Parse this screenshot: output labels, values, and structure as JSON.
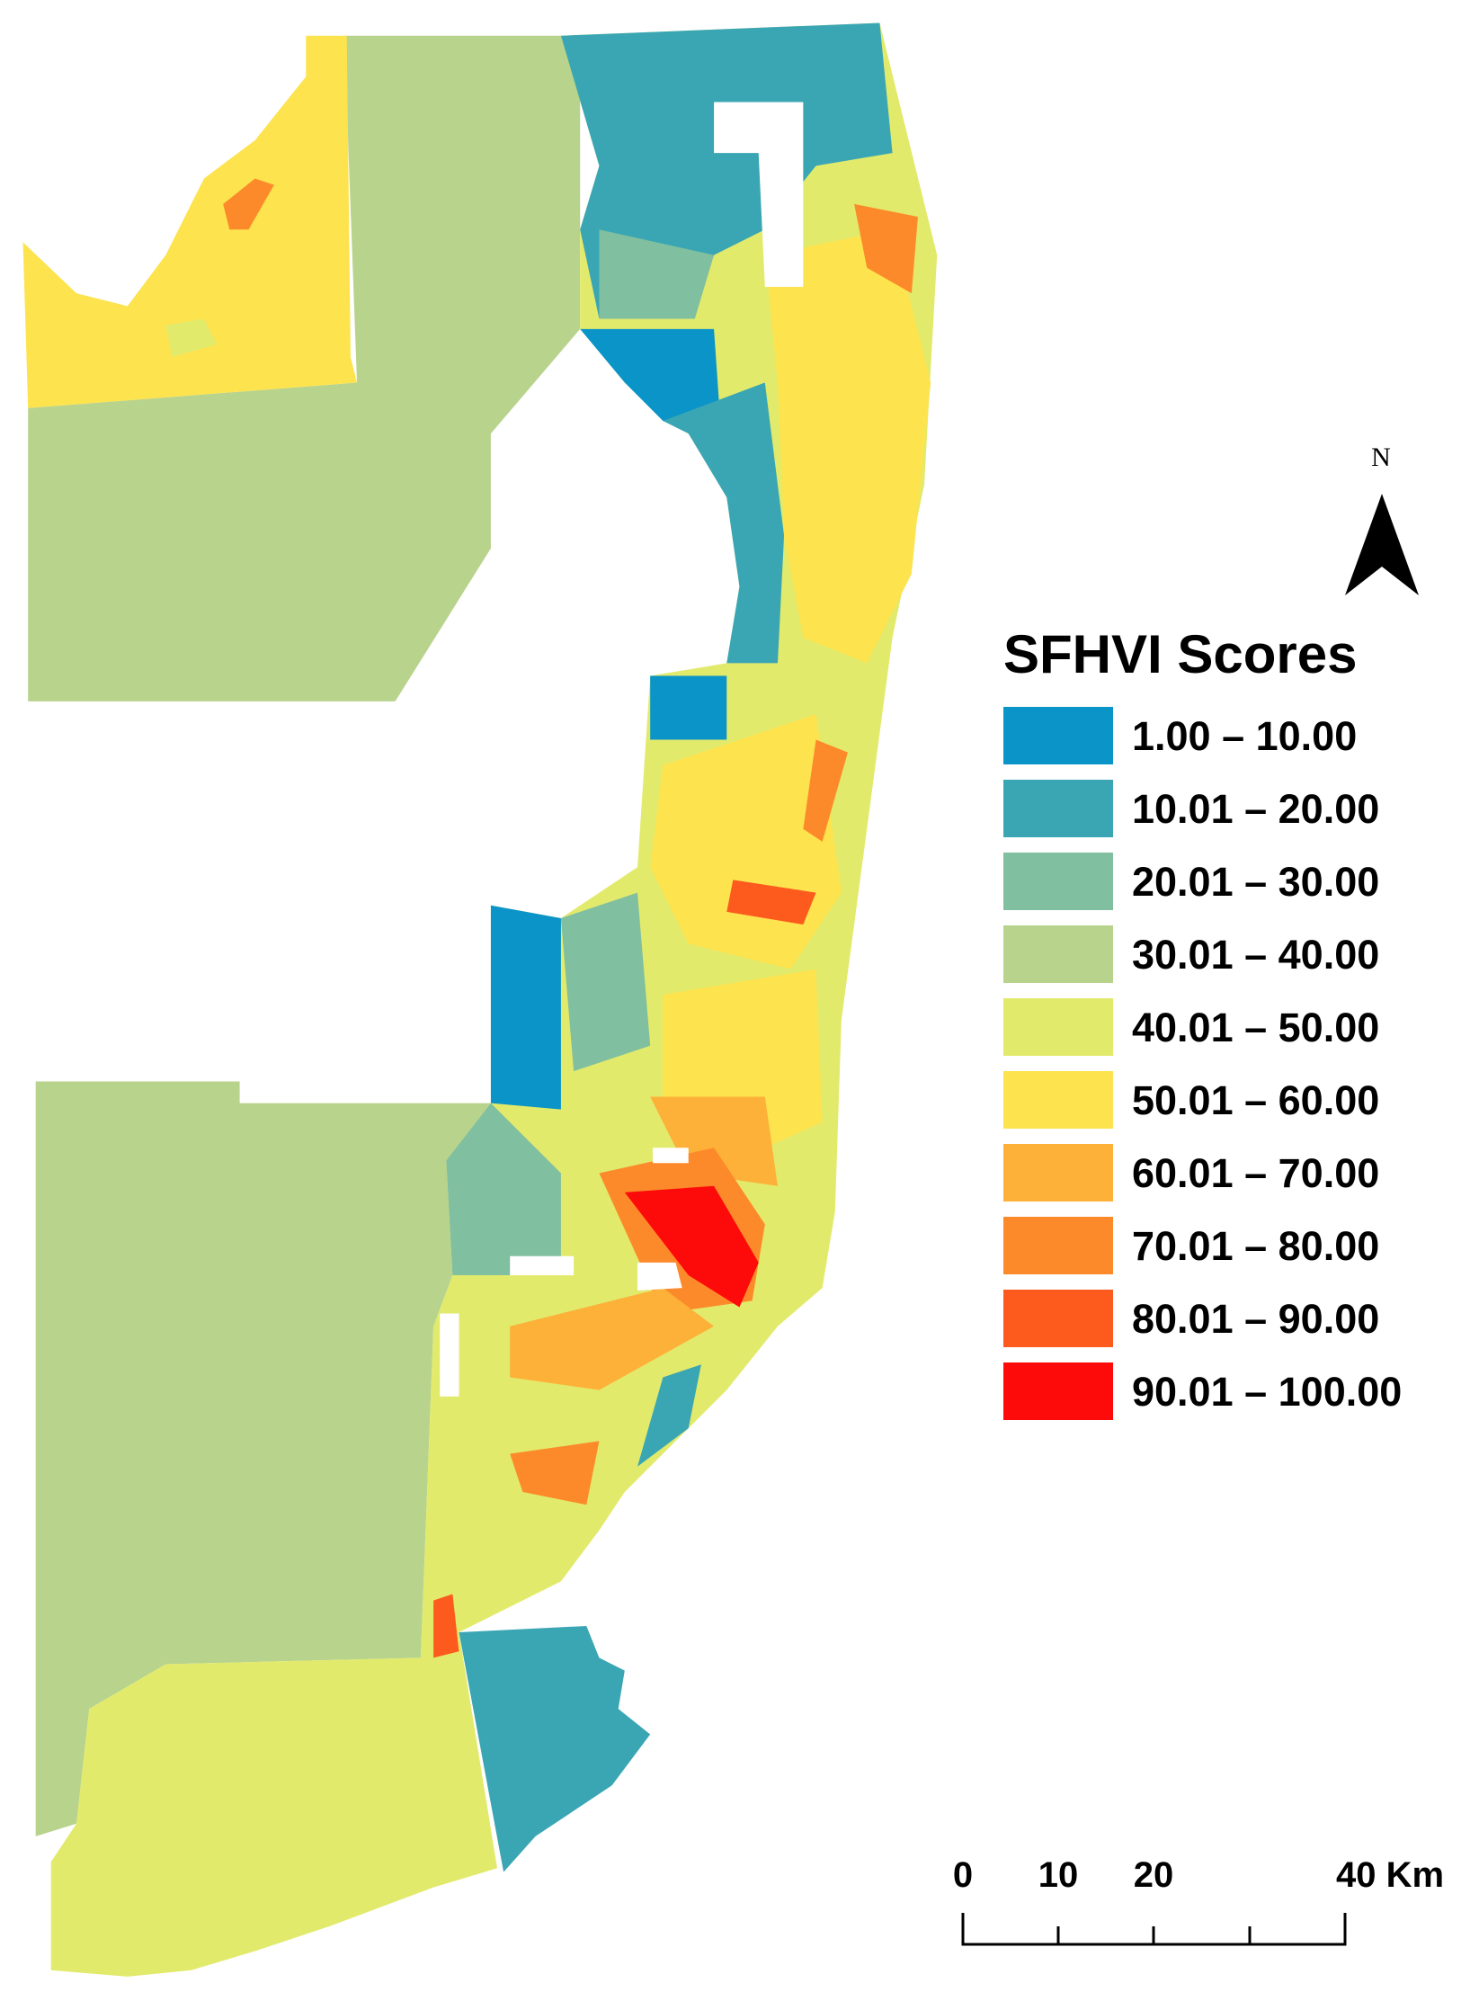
{
  "legend": {
    "title": "SFHVI Scores",
    "items": [
      {
        "label": "1.00 – 10.00",
        "color": "#0a94c8"
      },
      {
        "label": "10.01 – 20.00",
        "color": "#3aa6b4"
      },
      {
        "label": "20.01 – 30.00",
        "color": "#80bfa0"
      },
      {
        "label": "30.01 – 40.00",
        "color": "#b8d38c"
      },
      {
        "label": "40.01 – 50.00",
        "color": "#e2ea6c"
      },
      {
        "label": "50.01 – 60.00",
        "color": "#fde34e"
      },
      {
        "label": "60.01 – 70.00",
        "color": "#fdb138"
      },
      {
        "label": "70.01 – 80.00",
        "color": "#fd8a2a"
      },
      {
        "label": "80.01 – 90.00",
        "color": "#fd5a1e"
      },
      {
        "label": "90.01 – 100.00",
        "color": "#fd0a0a"
      }
    ]
  },
  "north_arrow": {
    "label": "N"
  },
  "scale_bar": {
    "labels": [
      "0",
      "10",
      "20",
      "40 Km"
    ]
  }
}
